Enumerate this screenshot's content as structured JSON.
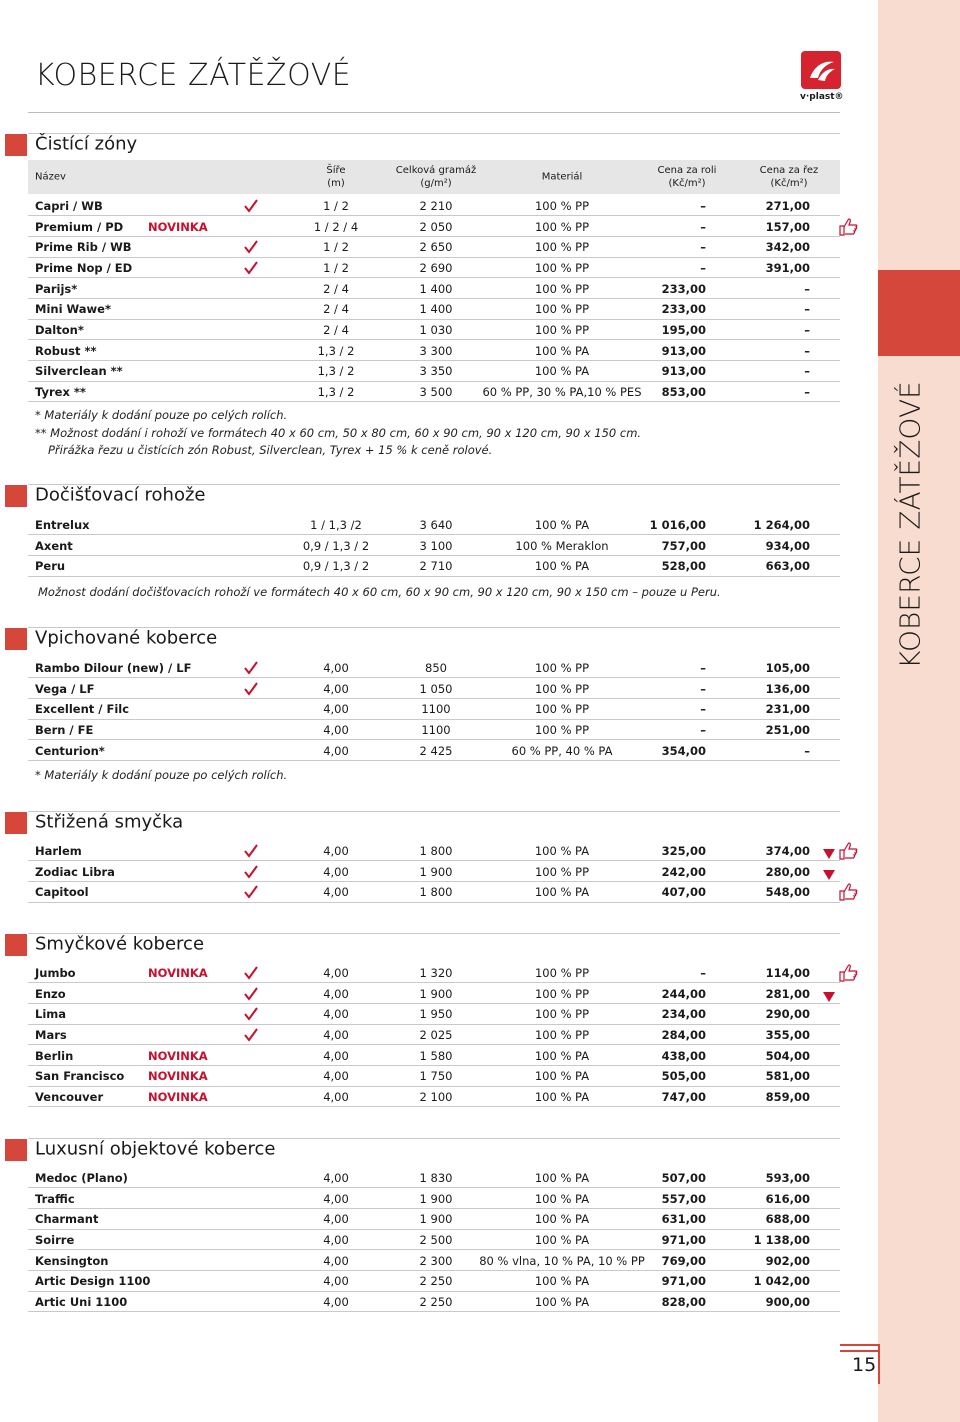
{
  "header": {
    "title": "KOBERCE ZÁTĚŽOVÉ",
    "logo": "v·plast®",
    "side": "KOBERCE ZÁTĚŽOVÉ",
    "page": "15"
  },
  "columns": [
    [
      "Název"
    ],
    [
      "Šíře",
      "(m)"
    ],
    [
      "Celková gramáž",
      "(g/m²)"
    ],
    [
      "Materiál"
    ],
    [
      "Cena za roli",
      "(Kč/m²)"
    ],
    [
      "Cena za řez",
      "(Kč/m²)"
    ]
  ],
  "sections": [
    {
      "title": "Čistící zóny",
      "show_columns": true,
      "rows": [
        {
          "name": "Capri / WB",
          "check": true,
          "width": "1 / 2",
          "weight": "2 210",
          "material": "100 % PP",
          "roll": "–",
          "cut": "271,00"
        },
        {
          "name": "Premium / PD",
          "badge": "NOVINKA",
          "width": "1 / 2 / 4",
          "weight": "2 050",
          "material": "100 % PP",
          "roll": "–",
          "cut": "157,00",
          "icons": [
            "thumb"
          ]
        },
        {
          "name": "Prime Rib / WB",
          "check": true,
          "width": "1 / 2",
          "weight": "2 650",
          "material": "100 % PP",
          "roll": "–",
          "cut": "342,00"
        },
        {
          "name": "Prime Nop / ED",
          "check": true,
          "width": "1 / 2",
          "weight": "2 690",
          "material": "100 % PP",
          "roll": "–",
          "cut": "391,00"
        },
        {
          "name": "Parijs*",
          "width": "2 / 4",
          "weight": "1 400",
          "material": "100 % PP",
          "roll": "233,00",
          "cut": "–"
        },
        {
          "name": "Mini Wawe*",
          "width": "2 / 4",
          "weight": "1 400",
          "material": "100 % PP",
          "roll": "233,00",
          "cut": "–"
        },
        {
          "name": "Dalton*",
          "width": "2 / 4",
          "weight": "1 030",
          "material": "100 % PP",
          "roll": "195,00",
          "cut": "–"
        },
        {
          "name": "Robust **",
          "width": "1,3 / 2",
          "weight": "3 300",
          "material": "100 % PA",
          "roll": "913,00",
          "cut": "–"
        },
        {
          "name": "Silverclean **",
          "width": "1,3 / 2",
          "weight": "3 350",
          "material": "100 % PA",
          "roll": "913,00",
          "cut": "–"
        },
        {
          "name": "Tyrex **",
          "width": "1,3 / 2",
          "weight": "3 500",
          "material": "60 % PP, 30 % PA,10 % PES",
          "roll": "853,00",
          "cut": "–"
        }
      ],
      "notes": [
        "* Materiály k dodání pouze po celých rolích.",
        "** Možnost dodání i rohoží ve formátech 40 x 60 cm, 50 x 80 cm, 60 x 90 cm, 90 x 120 cm, 90 x 150 cm.",
        "Přirážka řezu u čistících zón Robust, Silverclean, Tyrex + 15 % k ceně rolové."
      ]
    },
    {
      "title": "Dočišťovací rohože",
      "rows": [
        {
          "name": "Entrelux",
          "width": "1 / 1,3 /2",
          "weight": "3 640",
          "material": "100 % PA",
          "roll": "1 016,00",
          "cut": "1 264,00"
        },
        {
          "name": "Axent",
          "width": "0,9 / 1,3 / 2",
          "weight": "3 100",
          "material": "100 % Meraklon",
          "roll": "757,00",
          "cut": "934,00"
        },
        {
          "name": "Peru",
          "width": "0,9 / 1,3 / 2",
          "weight": "2 710",
          "material": "100 % PA",
          "roll": "528,00",
          "cut": "663,00"
        }
      ],
      "notes": [
        "Možnost dodání dočišťovacích rohoží ve formátech 40 x 60 cm, 60 x 90 cm, 90 x 120 cm, 90 x 150 cm – pouze u Peru."
      ]
    },
    {
      "title": "Vpichované koberce",
      "rows": [
        {
          "name": "Rambo Dilour (new) / LF",
          "check": true,
          "width": "4,00",
          "weight": "850",
          "material": "100 % PP",
          "roll": "–",
          "cut": "105,00"
        },
        {
          "name": "Vega / LF",
          "check": true,
          "width": "4,00",
          "weight": "1 050",
          "material": "100 % PP",
          "roll": "–",
          "cut": "136,00"
        },
        {
          "name": "Excellent / Filc",
          "width": "4,00",
          "weight": "1100",
          "material": "100 % PP",
          "roll": "–",
          "cut": "231,00"
        },
        {
          "name": "Bern / FE",
          "width": "4,00",
          "weight": "1100",
          "material": "100 % PP",
          "roll": "–",
          "cut": "251,00"
        },
        {
          "name": "Centurion*",
          "width": "4,00",
          "weight": "2 425",
          "material": "60 % PP, 40 % PA",
          "roll": "354,00",
          "cut": "–"
        }
      ],
      "notes": [
        "* Materiály k dodání pouze po celých rolích."
      ]
    },
    {
      "title": "Střižená smyčka",
      "rows": [
        {
          "name": "Harlem",
          "check": true,
          "width": "4,00",
          "weight": "1 800",
          "material": "100 % PA",
          "roll": "325,00",
          "cut": "374,00",
          "icons": [
            "triangle",
            "thumb"
          ]
        },
        {
          "name": "Zodiac Libra",
          "check": true,
          "width": "4,00",
          "weight": "1 900",
          "material": "100 % PP",
          "roll": "242,00",
          "cut": "280,00",
          "icons": [
            "triangle"
          ]
        },
        {
          "name": "Capitool",
          "check": true,
          "width": "4,00",
          "weight": "1 800",
          "material": "100 % PA",
          "roll": "407,00",
          "cut": "548,00",
          "icons": [
            "thumb"
          ]
        }
      ]
    },
    {
      "title": "Smyčkové koberce",
      "rows": [
        {
          "name": "Jumbo",
          "badge": "NOVINKA",
          "check": true,
          "width": "4,00",
          "weight": "1 320",
          "material": "100 % PP",
          "roll": "–",
          "cut": "114,00",
          "icons": [
            "thumb"
          ]
        },
        {
          "name": "Enzo",
          "check": true,
          "width": "4,00",
          "weight": "1 900",
          "material": "100 % PP",
          "roll": "244,00",
          "cut": "281,00",
          "icons": [
            "triangle"
          ]
        },
        {
          "name": "Lima",
          "check": true,
          "width": "4,00",
          "weight": "1 950",
          "material": "100 % PP",
          "roll": "234,00",
          "cut": "290,00"
        },
        {
          "name": "Mars",
          "check": true,
          "width": "4,00",
          "weight": "2 025",
          "material": "100 % PP",
          "roll": "284,00",
          "cut": "355,00"
        },
        {
          "name": "Berlin",
          "badge": "NOVINKA",
          "width": "4,00",
          "weight": "1 580",
          "material": "100 % PA",
          "roll": "438,00",
          "cut": "504,00"
        },
        {
          "name": "San Francisco",
          "badge": "NOVINKA",
          "width": "4,00",
          "weight": "1 750",
          "material": "100 % PA",
          "roll": "505,00",
          "cut": "581,00"
        },
        {
          "name": "Vencouver",
          "badge": "NOVINKA",
          "width": "4,00",
          "weight": "2 100",
          "material": "100 % PA",
          "roll": "747,00",
          "cut": "859,00"
        }
      ]
    },
    {
      "title": "Luxusní objektové koberce",
      "rows": [
        {
          "name": "Medoc (Plano)",
          "width": "4,00",
          "weight": "1 830",
          "material": "100 % PA",
          "roll": "507,00",
          "cut": "593,00"
        },
        {
          "name": "Traffic",
          "width": "4,00",
          "weight": "1 900",
          "material": "100 % PA",
          "roll": "557,00",
          "cut": "616,00"
        },
        {
          "name": "Charmant",
          "width": "4,00",
          "weight": "1 900",
          "material": "100 % PA",
          "roll": "631,00",
          "cut": "688,00"
        },
        {
          "name": "Soirre",
          "width": "4,00",
          "weight": "2 500",
          "material": "100 % PA",
          "roll": "971,00",
          "cut": "1 138,00"
        },
        {
          "name": "Kensington",
          "width": "4,00",
          "weight": "2 300",
          "material": "80 % vlna, 10 % PA, 10 % PP",
          "roll": "769,00",
          "cut": "902,00"
        },
        {
          "name": "Artic Design 1100",
          "width": "4,00",
          "weight": "2 250",
          "material": "100 % PA",
          "roll": "971,00",
          "cut": "1 042,00"
        },
        {
          "name": "Artic Uni 1100",
          "width": "4,00",
          "weight": "2 250",
          "material": "100 % PA",
          "roll": "828,00",
          "cut": "900,00"
        }
      ]
    }
  ]
}
